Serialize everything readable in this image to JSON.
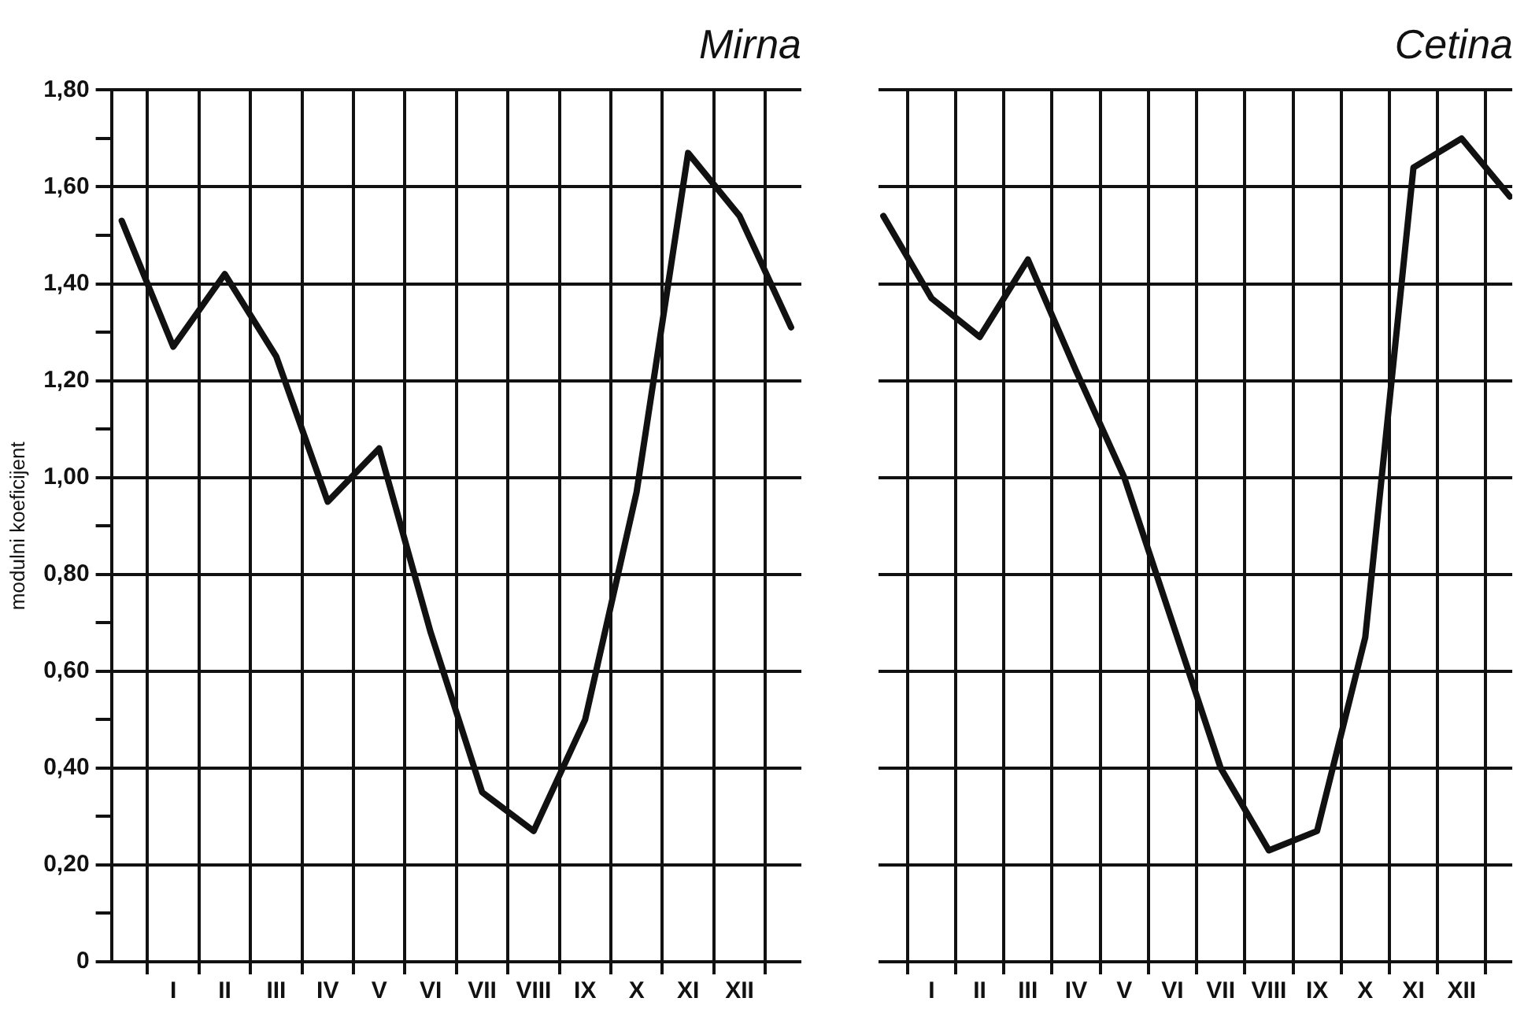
{
  "chart_data": [
    {
      "type": "line",
      "title": "Mirna",
      "ylabel": "modulni koeficijent",
      "marker": "none",
      "line_style": "solid",
      "grid": true,
      "legend": false,
      "categories": [
        null,
        "I",
        "II",
        "III",
        "IV",
        "V",
        "VI",
        "VII",
        "VIII",
        "IX",
        "X",
        "XI",
        "XII",
        null
      ],
      "ylim": [
        0,
        1.8
      ],
      "yticks": [
        0,
        {
          "value": 0.1,
          "label": null
        },
        {
          "value": 0.2,
          "label": "0,20"
        },
        {
          "value": 0.3,
          "label": null
        },
        {
          "value": 0.4,
          "label": "0,40"
        },
        {
          "value": 0.5,
          "label": null
        },
        {
          "value": 0.6,
          "label": "0,60"
        },
        {
          "value": 0.7,
          "label": null
        },
        {
          "value": 0.8,
          "label": "0,80"
        },
        {
          "value": 0.9,
          "label": null
        },
        {
          "value": 1.0,
          "label": "1,00"
        },
        {
          "value": 1.1,
          "label": null
        },
        {
          "value": 1.2,
          "label": "1,20"
        },
        {
          "value": 1.3,
          "label": null
        },
        {
          "value": 1.4,
          "label": "1,40"
        },
        {
          "value": 1.5,
          "label": null
        },
        {
          "value": 1.6,
          "label": "1,60"
        },
        {
          "value": 1.7,
          "label": null
        },
        {
          "value": 1.8,
          "label": "1,80"
        }
      ],
      "series": [
        {
          "color": "#111111",
          "values": [
            1.53,
            1.27,
            1.42,
            1.25,
            0.95,
            1.06,
            0.68,
            0.35,
            0.27,
            0.5,
            0.97,
            1.67,
            1.54,
            1.31
          ]
        }
      ]
    },
    {
      "type": "line",
      "title": "Cetina",
      "marker": "none",
      "line_style": "solid",
      "grid": true,
      "legend": false,
      "tick_labels": "x",
      "categories": [
        null,
        "I",
        "II",
        "III",
        "IV",
        "V",
        "VI",
        "VII",
        "VIII",
        "IX",
        "X",
        "XI",
        "XII",
        null
      ],
      "ylim": [
        0,
        1.8
      ],
      "yticks": [
        0,
        0.2,
        0.4,
        0.6,
        0.8,
        1.0,
        1.2,
        1.4,
        1.6,
        1.8
      ],
      "series": [
        {
          "color": "#111111",
          "values": [
            1.54,
            1.37,
            1.29,
            1.45,
            1.22,
            1.0,
            0.7,
            0.4,
            0.23,
            0.27,
            0.67,
            1.64,
            1.7,
            1.58
          ]
        }
      ]
    }
  ]
}
